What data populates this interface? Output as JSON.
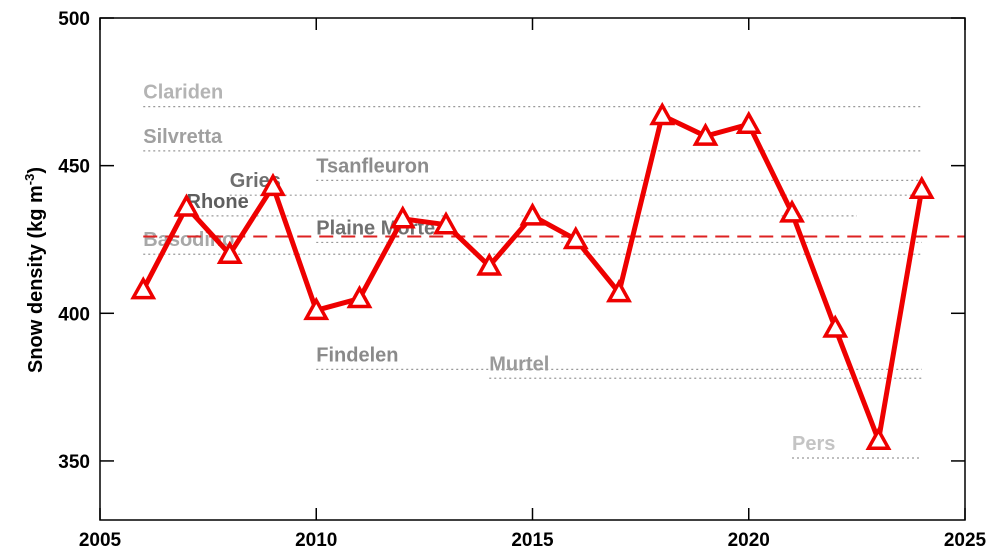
{
  "chart_data": {
    "type": "line",
    "ylabel": "Snow density (kg m",
    "ylabel_sup": "-3",
    "ylabel_end": ")",
    "x": [
      2006,
      2007,
      2008,
      2009,
      2010,
      2011,
      2012,
      2013,
      2014,
      2015,
      2016,
      2017,
      2018,
      2019,
      2020,
      2021,
      2022,
      2023,
      2024
    ],
    "series": [
      {
        "color": "#ee0000",
        "values": [
          408,
          436,
          420,
          443,
          401,
          405,
          432,
          430,
          416,
          433,
          425,
          407,
          467,
          460,
          464,
          434,
          395,
          357,
          442
        ]
      }
    ],
    "mean": 426,
    "mean_color": "#dd2222",
    "references": [
      {
        "name": "Clariden",
        "value": 470,
        "start": 2006,
        "end": 2024,
        "color": "#b4b4b4"
      },
      {
        "name": "Silvretta",
        "value": 455,
        "start": 2006,
        "end": 2024,
        "color": "#a0a0a0"
      },
      {
        "name": "Tsanfleuron",
        "value": 445,
        "start": 2010,
        "end": 2024,
        "color": "#8c8c8c"
      },
      {
        "name": "Gries",
        "value": 440,
        "start": 2008,
        "end": 2024,
        "color": "#6e6e6e"
      },
      {
        "name": "Rhone",
        "value": 433,
        "start": 2007,
        "end": 2022.5,
        "color": "#5e5e5e"
      },
      {
        "name": "Basodino",
        "value": 420,
        "start": 2006,
        "end": 2024,
        "color": "#a8a8a8"
      },
      {
        "name": "Plaine Morte",
        "value": 424,
        "start": 2010,
        "end": 2024,
        "color": "#707070"
      },
      {
        "name": "Findelen",
        "value": 381,
        "start": 2010,
        "end": 2024,
        "color": "#8a8a8a"
      },
      {
        "name": "Murtel",
        "value": 378,
        "start": 2014,
        "end": 2024,
        "color": "#9a9a9a"
      },
      {
        "name": "Pers",
        "value": 351,
        "start": 2021,
        "end": 2024,
        "color": "#c4c4c4"
      }
    ],
    "xlim": [
      2005,
      2025
    ],
    "xticks": [
      2005,
      2010,
      2015,
      2020,
      2025
    ],
    "ylim": [
      330,
      500
    ],
    "yticks": [
      350,
      400,
      450,
      500
    ]
  }
}
